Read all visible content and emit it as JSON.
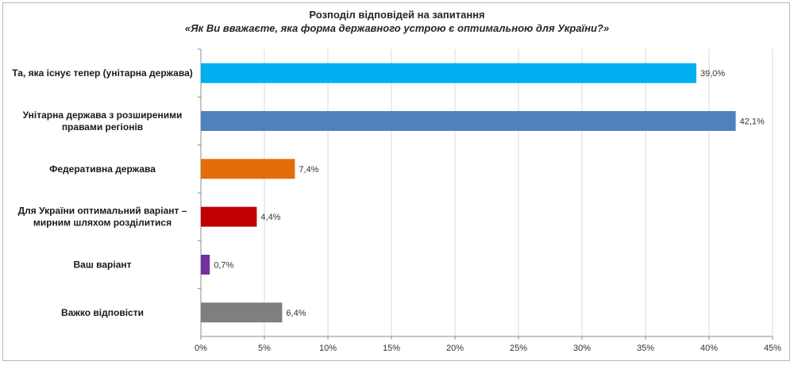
{
  "chart_data": {
    "type": "bar",
    "orientation": "horizontal",
    "title": "Розподіл відповідей на запитання",
    "subtitle": "«Як Ви вважаєте, яка форма державного устрою є оптимальною для України?»",
    "categories": [
      [
        "Та, яка існує тепер (унітарна держава)"
      ],
      [
        "Унітарна держава з розширеними",
        "правами регіонів"
      ],
      [
        "Федеративна держава"
      ],
      [
        "Для України оптимальний варіант –",
        "мирним шляхом розділитися"
      ],
      [
        "Ваш варіант"
      ],
      [
        "Важко відповісти"
      ]
    ],
    "values": [
      39.0,
      42.1,
      7.4,
      4.4,
      0.7,
      6.4
    ],
    "value_labels": [
      "39,0%",
      "42,1%",
      "7,4%",
      "4,4%",
      "0,7%",
      "6,4%"
    ],
    "colors": [
      "#00b0f0",
      "#4f81bd",
      "#e46c0a",
      "#c00000",
      "#7030a0",
      "#7f7f7f"
    ],
    "xlim": [
      0,
      45
    ],
    "xticks": [
      0,
      5,
      10,
      15,
      20,
      25,
      30,
      35,
      40,
      45
    ],
    "xtick_labels": [
      "0%",
      "5%",
      "10%",
      "15%",
      "20%",
      "25%",
      "30%",
      "35%",
      "40%",
      "45%"
    ],
    "grid": "vertical",
    "legend": "none"
  }
}
